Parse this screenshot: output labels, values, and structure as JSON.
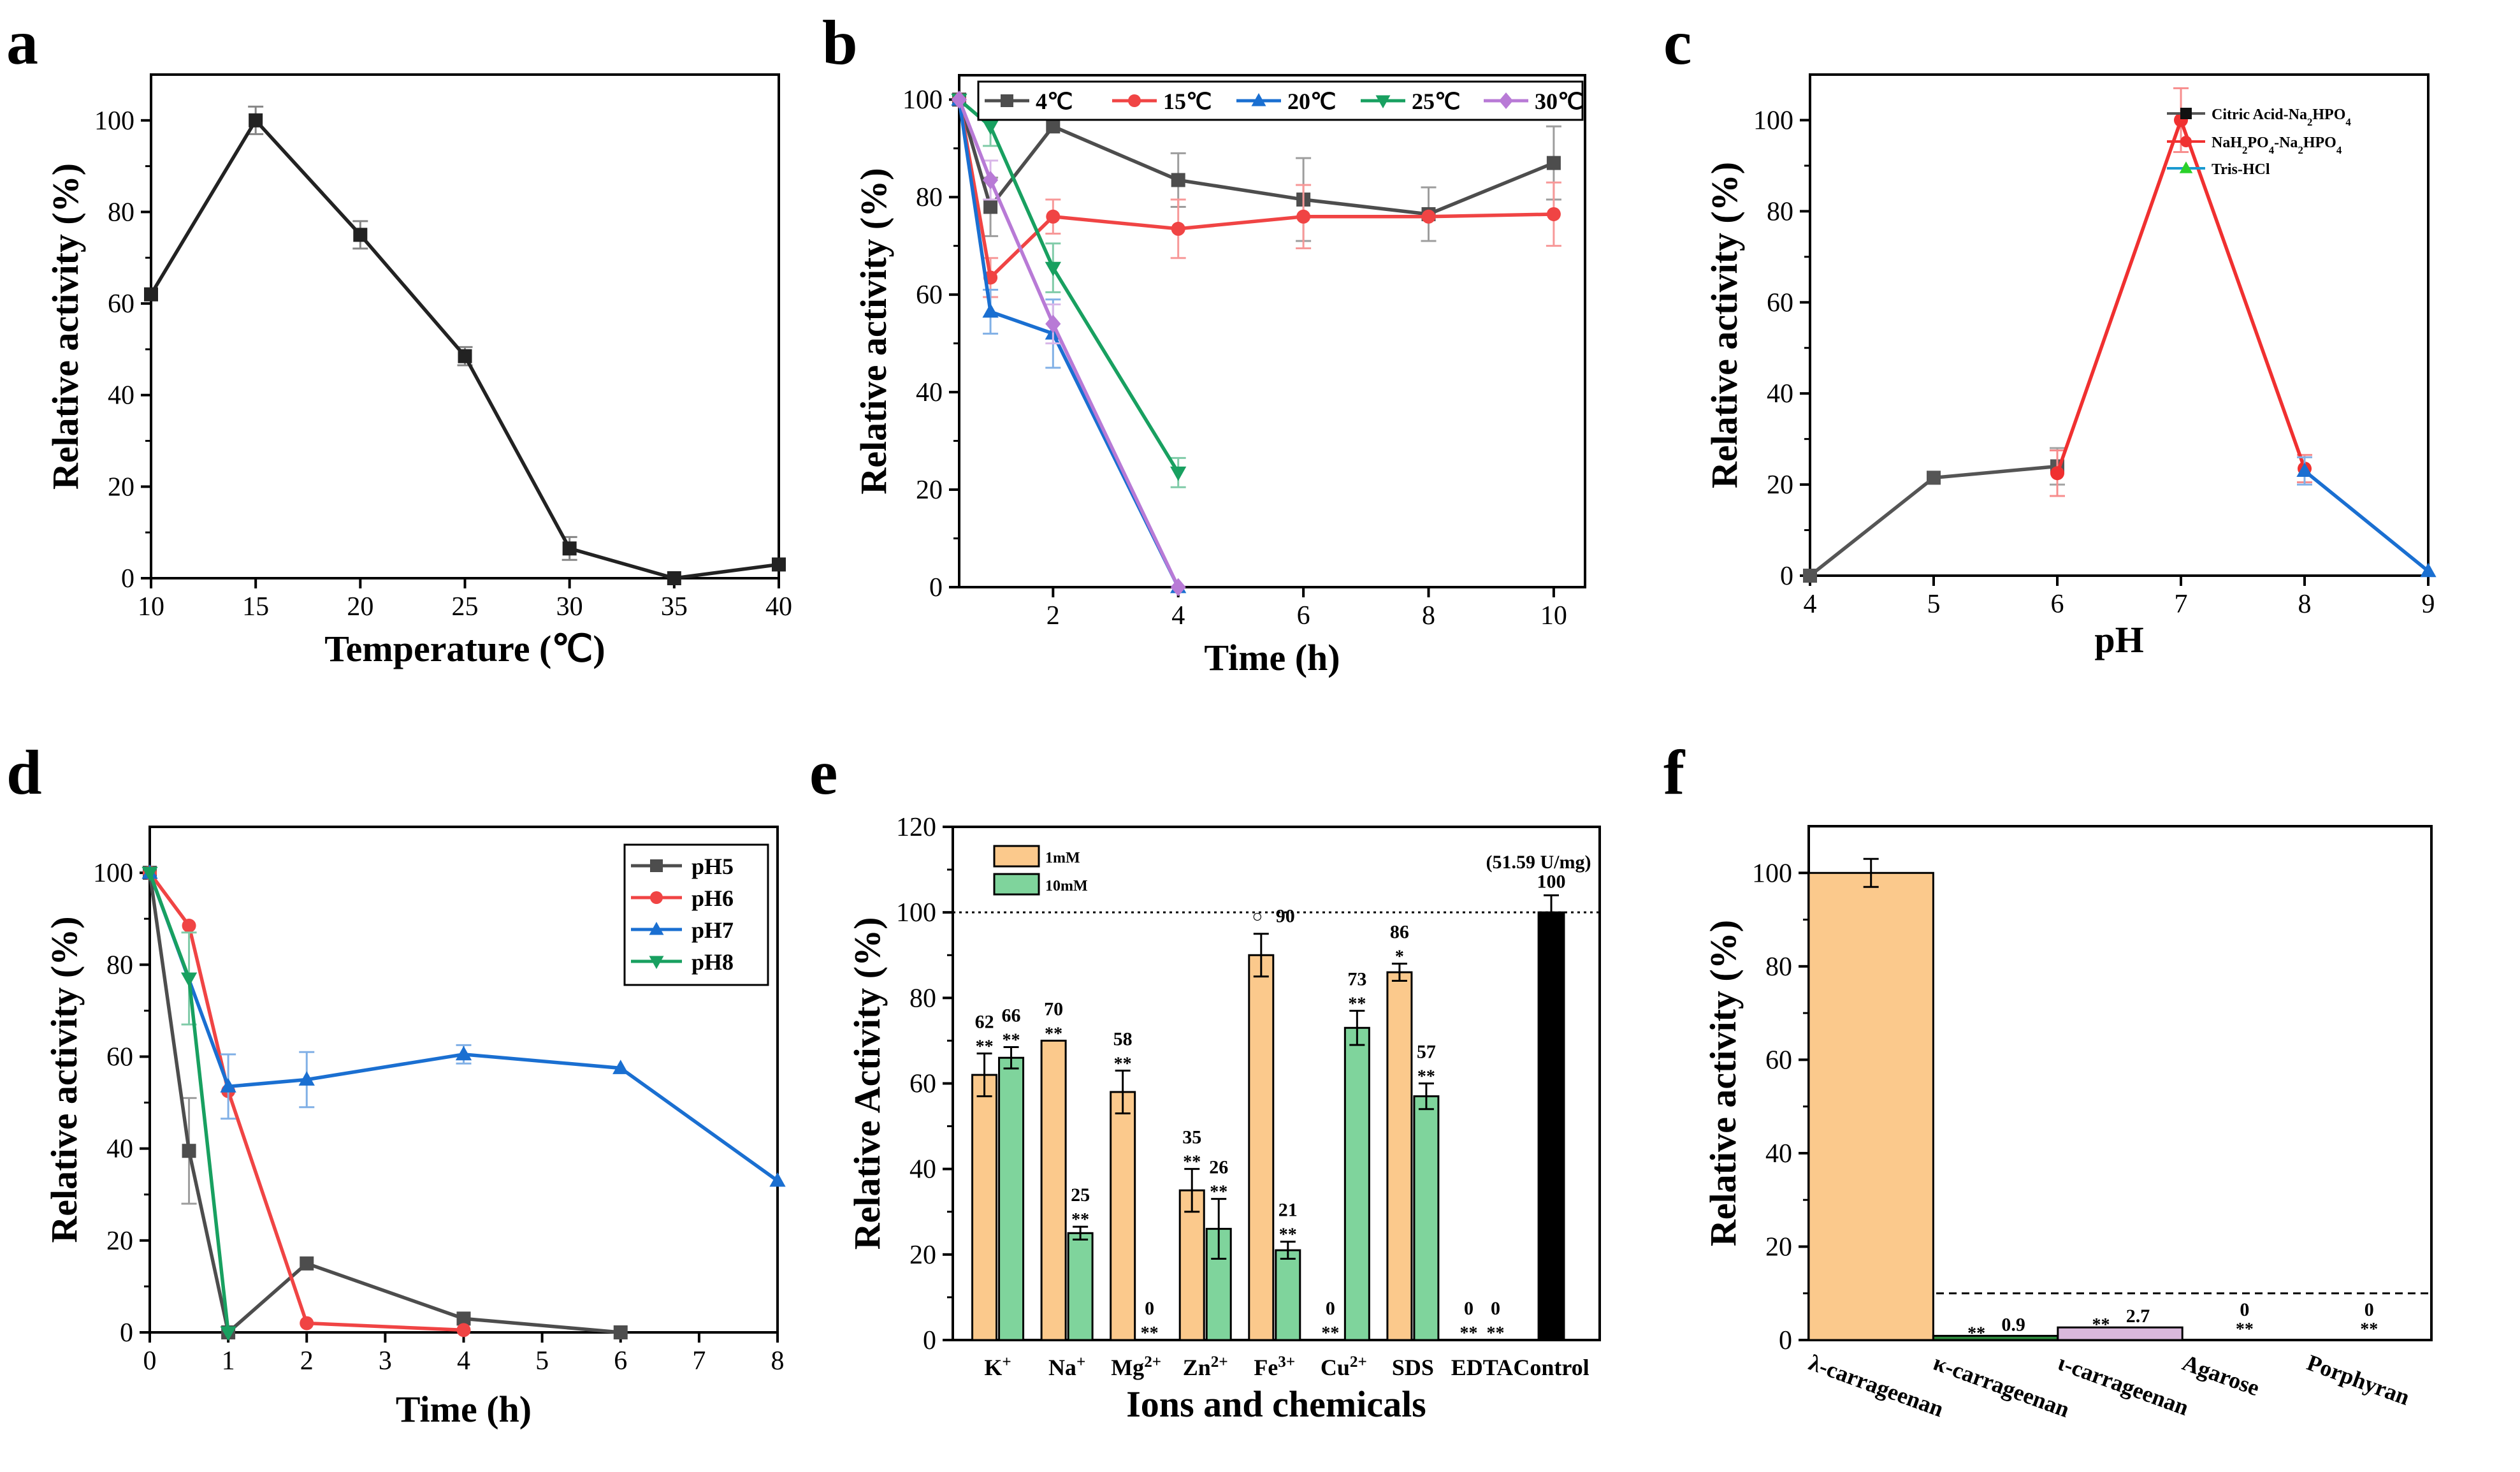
{
  "panels": {
    "a": {
      "letter": "a"
    },
    "b": {
      "letter": "b"
    },
    "c": {
      "letter": "c"
    },
    "d": {
      "letter": "d"
    },
    "e": {
      "letter": "e"
    },
    "f": {
      "letter": "f"
    }
  },
  "chart_data": [
    {
      "id": "a",
      "type": "line",
      "xlabel": "Temperature (℃)",
      "ylabel": "Relative activity (%)",
      "xlim": [
        10,
        40
      ],
      "ylim": [
        0,
        110
      ],
      "xticks": [
        10,
        15,
        20,
        25,
        30,
        35,
        40
      ],
      "yticks": [
        0,
        20,
        40,
        60,
        80,
        100
      ],
      "series": [
        {
          "name": "activity",
          "color": "#222222",
          "marker": "square",
          "x": [
            10,
            15,
            20,
            25,
            30,
            35,
            40
          ],
          "y": [
            62,
            100,
            75,
            48.5,
            6.5,
            0,
            3
          ],
          "err": [
            0,
            3,
            3,
            2,
            2.5,
            0,
            0
          ]
        }
      ]
    },
    {
      "id": "b",
      "type": "line",
      "xlabel": "Time (h)",
      "ylabel": "Relative activity (%)",
      "xlim": [
        0.5,
        10.5
      ],
      "ylim": [
        0,
        105
      ],
      "xticks": [
        2,
        4,
        6,
        8,
        10
      ],
      "yticks": [
        0,
        20,
        40,
        60,
        80,
        100
      ],
      "series": [
        {
          "name": "4℃",
          "color": "#4d4d4d",
          "marker": "square",
          "x": [
            0.5,
            1,
            2,
            4,
            6,
            8,
            10
          ],
          "y": [
            100,
            78,
            94.5,
            83.5,
            79.5,
            76.5,
            87
          ],
          "err": [
            0,
            6,
            0,
            5.5,
            8.5,
            5.5,
            7.5
          ]
        },
        {
          "name": "15℃",
          "color": "#f04444",
          "marker": "circle",
          "x": [
            0.5,
            1,
            2,
            4,
            6,
            8,
            10
          ],
          "y": [
            100,
            63.5,
            76,
            73.5,
            76,
            76,
            76.5
          ],
          "err": [
            0,
            4,
            3.5,
            6,
            6.5,
            0,
            6.5
          ]
        },
        {
          "name": "20℃",
          "color": "#1a6fd1",
          "marker": "triangle-up",
          "x": [
            0.5,
            1,
            2,
            4
          ],
          "y": [
            100,
            56.5,
            52,
            0
          ],
          "err": [
            0,
            4.5,
            7,
            0
          ]
        },
        {
          "name": "25℃",
          "color": "#18a060",
          "marker": "triangle-down",
          "x": [
            0.5,
            1,
            2,
            4
          ],
          "y": [
            100,
            94.5,
            65.5,
            23.5
          ],
          "err": [
            0,
            4,
            5,
            3
          ]
        },
        {
          "name": "30℃",
          "color": "#b87ad6",
          "marker": "diamond",
          "x": [
            0.5,
            1,
            2,
            4
          ],
          "y": [
            100,
            83.5,
            54,
            0
          ],
          "err": [
            0,
            4,
            4,
            0
          ]
        }
      ]
    },
    {
      "id": "c",
      "type": "line",
      "xlabel": "pH",
      "ylabel": "Relative activity (%)",
      "xlim": [
        4,
        9
      ],
      "ylim": [
        0,
        110
      ],
      "xticks": [
        4,
        5,
        6,
        7,
        8,
        9
      ],
      "yticks": [
        0,
        20,
        40,
        60,
        80,
        100
      ],
      "series": [
        {
          "name": "Citric Acid-Na2HPO4",
          "color": "#555555",
          "marker": "square",
          "x": [
            4,
            5,
            6
          ],
          "y": [
            0,
            21.5,
            24
          ],
          "err": [
            0,
            0,
            4
          ]
        },
        {
          "name": "NaH2PO4-Na2HPO4",
          "color": "#f03030",
          "marker": "circle",
          "x": [
            6,
            7,
            8
          ],
          "y": [
            22.5,
            100,
            23.5
          ],
          "err": [
            5,
            7,
            3
          ]
        },
        {
          "name": "Tris-HCl",
          "color": "#1a6fd1",
          "marker": "triangle-up",
          "x": [
            8,
            9
          ],
          "y": [
            23,
            1
          ],
          "err": [
            3,
            0
          ]
        }
      ],
      "legend": [
        {
          "base": "Citric Acid-Na",
          "sub1": "2",
          "mid": "HPO",
          "sub2": "4",
          "color": "#555555",
          "marker_color": "#111111",
          "marker": "square"
        },
        {
          "base": "NaH",
          "sub1": "2",
          "mid": "PO",
          "sub2": "4",
          "mid2": "-Na",
          "sub3": "2",
          "mid3": "HPO",
          "sub4": "4",
          "color": "#f03030",
          "marker_color": "#f03030",
          "marker": "circle"
        },
        {
          "base": "Tris-HCl",
          "color": "#1a9ad1",
          "marker_color": "#2ad12a",
          "marker": "triangle-up"
        }
      ]
    },
    {
      "id": "d",
      "type": "line",
      "xlabel": "Time (h)",
      "ylabel": "Relative activity (%)",
      "xlim": [
        0,
        8
      ],
      "ylim": [
        0,
        110
      ],
      "xticks": [
        0,
        1,
        2,
        3,
        4,
        5,
        6,
        7,
        8
      ],
      "yticks": [
        0,
        20,
        40,
        60,
        80,
        100
      ],
      "series": [
        {
          "name": "pH5",
          "color": "#4d4d4d",
          "marker": "square",
          "x": [
            0,
            0.5,
            1,
            2,
            4,
            6
          ],
          "y": [
            100,
            39.5,
            0,
            15,
            3,
            0
          ],
          "err": [
            0,
            11.5,
            0,
            0,
            0,
            0
          ]
        },
        {
          "name": "pH6",
          "color": "#f04444",
          "marker": "circle",
          "x": [
            0,
            0.5,
            1,
            2,
            4
          ],
          "y": [
            100,
            88.5,
            52.5,
            2,
            0.5
          ],
          "err": [
            0,
            0,
            0,
            0,
            0
          ]
        },
        {
          "name": "pH7",
          "color": "#1a6fd1",
          "marker": "triangle-up",
          "x": [
            0,
            1,
            2,
            4,
            6,
            8
          ],
          "y": [
            100,
            53.5,
            55,
            60.5,
            57.5,
            33
          ],
          "err": [
            0,
            7,
            6,
            2,
            0,
            0
          ]
        },
        {
          "name": "pH8",
          "color": "#18a060",
          "marker": "triangle-down",
          "x": [
            0,
            0.5,
            1
          ],
          "y": [
            100,
            77,
            0
          ],
          "err": [
            0,
            10,
            0
          ]
        }
      ]
    },
    {
      "id": "e",
      "type": "bar",
      "xlabel": "Ions and chemicals",
      "ylabel": "Relative Activity (%)",
      "ylim": [
        0,
        120
      ],
      "yticks": [
        0,
        20,
        40,
        60,
        80,
        100,
        120
      ],
      "reference_line": 100,
      "categories": [
        {
          "base": "K",
          "sup": "+"
        },
        {
          "base": "Na",
          "sup": "+"
        },
        {
          "base": "Mg",
          "sup": "2+"
        },
        {
          "base": "Zn",
          "sup": "2+"
        },
        {
          "base": "Fe",
          "sup": "3+"
        },
        {
          "base": "Cu",
          "sup": "2+"
        },
        {
          "base": "SDS"
        },
        {
          "base": "EDTA"
        },
        {
          "base": "Control"
        }
      ],
      "series": [
        {
          "name": "1mM",
          "color": "#fbc98c",
          "values": [
            62,
            70,
            58,
            35,
            90,
            0,
            86,
            0,
            null
          ],
          "err": [
            5,
            0,
            5,
            5,
            5,
            0,
            2,
            0,
            null
          ],
          "labels": [
            "62",
            "70",
            "58",
            "35",
            "90",
            "0",
            "86",
            "0",
            ""
          ],
          "sig": [
            "**",
            "**",
            "**",
            "**",
            "○",
            "**",
            "*",
            "**",
            ""
          ]
        },
        {
          "name": "10mM",
          "color": "#7fd49c",
          "values": [
            66,
            25,
            0,
            26,
            21,
            73,
            57,
            0,
            null
          ],
          "err": [
            2.5,
            1.5,
            0,
            7,
            2,
            4,
            3,
            0,
            null
          ],
          "labels": [
            "66",
            "25",
            "0",
            "26",
            "21",
            "73",
            "57",
            "0",
            ""
          ],
          "sig": [
            "**",
            "**",
            "**",
            "**",
            "**",
            "**",
            "**",
            "**",
            ""
          ]
        },
        {
          "name": "Control",
          "color": "#000000",
          "values": [
            null,
            null,
            null,
            null,
            null,
            null,
            null,
            null,
            100
          ],
          "err": [
            null,
            null,
            null,
            null,
            null,
            null,
            null,
            null,
            4
          ],
          "labels": [
            "",
            "",
            "",
            "",
            "",
            "",
            "",
            "",
            "100"
          ]
        }
      ],
      "annotation": "(51.59 U/mg)"
    },
    {
      "id": "f",
      "type": "bar",
      "xlabel": "",
      "ylabel": "Relative activity (%)",
      "ylim": [
        0,
        110
      ],
      "yticks": [
        0,
        20,
        40,
        60,
        80,
        100
      ],
      "reference_line": 10,
      "categories": [
        "λ-carrageenan",
        "κ-carrageenan",
        "ι-carrageenan",
        "Agarose",
        "Porphyran"
      ],
      "values": [
        100,
        0.9,
        2.7,
        0,
        0
      ],
      "err": [
        3,
        0,
        0,
        0,
        0
      ],
      "labels": [
        "",
        "0.9",
        "2.7",
        "0",
        "0"
      ],
      "sig": [
        "",
        "**",
        "**",
        "**",
        "**"
      ],
      "colors": [
        "#fbc98c",
        "#2e8b3e",
        "#d9b8dc",
        "#ffffff",
        "#ffffff"
      ]
    }
  ]
}
